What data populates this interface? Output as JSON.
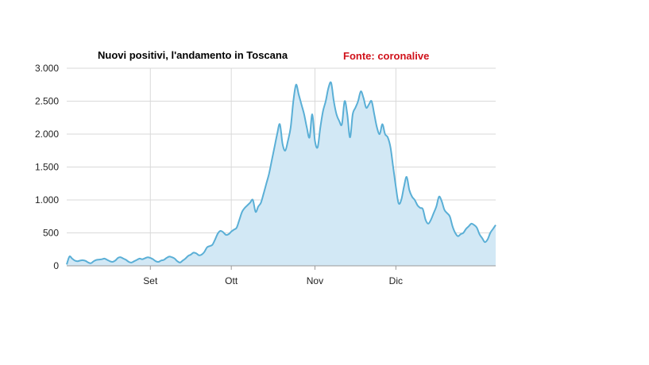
{
  "chart_data": {
    "type": "area",
    "title": "Nuovi positivi, l'andamento in Toscana",
    "source": "Fonte: coronalive",
    "xlabel": "",
    "ylabel": "",
    "ylim": [
      0,
      3000
    ],
    "yticks": [
      0,
      500,
      1000,
      1500,
      2000,
      2500,
      3000
    ],
    "ytick_labels": [
      "0",
      "500",
      "1.000",
      "1.500",
      "2.000",
      "2.500",
      "3.000"
    ],
    "xtick_labels": [
      "Set",
      "Ott",
      "Nov",
      "Dic"
    ],
    "xtick_days": [
      31,
      61,
      92,
      122
    ],
    "grid": true,
    "colors": {
      "line": "#5aafd6",
      "fill": "#d2e8f5",
      "grid": "#d9d9d9",
      "axis": "#999999",
      "source": "#d0121b"
    },
    "series": [
      {
        "values": [
          20,
          140,
          110,
          80,
          70,
          80,
          85,
          75,
          50,
          40,
          70,
          90,
          95,
          100,
          110,
          90,
          70,
          60,
          80,
          120,
          130,
          110,
          90,
          60,
          50,
          70,
          90,
          110,
          100,
          115,
          130,
          120,
          100,
          70,
          60,
          80,
          90,
          120,
          140,
          130,
          110,
          70,
          50,
          80,
          110,
          150,
          170,
          200,
          190,
          160,
          170,
          210,
          280,
          300,
          320,
          400,
          490,
          530,
          510,
          470,
          480,
          520,
          550,
          580,
          700,
          820,
          880,
          920,
          960,
          1000,
          820,
          900,
          960,
          1100,
          1250,
          1400,
          1600,
          1800,
          2000,
          2150,
          1850,
          1750,
          1900,
          2100,
          2500,
          2750,
          2600,
          2450,
          2300,
          2100,
          1950,
          2300,
          1900,
          1800,
          2100,
          2350,
          2500,
          2700,
          2780,
          2500,
          2300,
          2200,
          2150,
          2500,
          2300,
          1950,
          2300,
          2400,
          2500,
          2650,
          2550,
          2400,
          2450,
          2500,
          2300,
          2100,
          2000,
          2150,
          2000,
          1950,
          1800,
          1500,
          1200,
          950,
          1000,
          1200,
          1350,
          1150,
          1050,
          1000,
          920,
          880,
          860,
          700,
          640,
          700,
          800,
          900,
          1050,
          980,
          850,
          800,
          750,
          600,
          500,
          450,
          480,
          500,
          560,
          600,
          640,
          620,
          580,
          480,
          420,
          360,
          400,
          500,
          560,
          620
        ]
      }
    ]
  }
}
